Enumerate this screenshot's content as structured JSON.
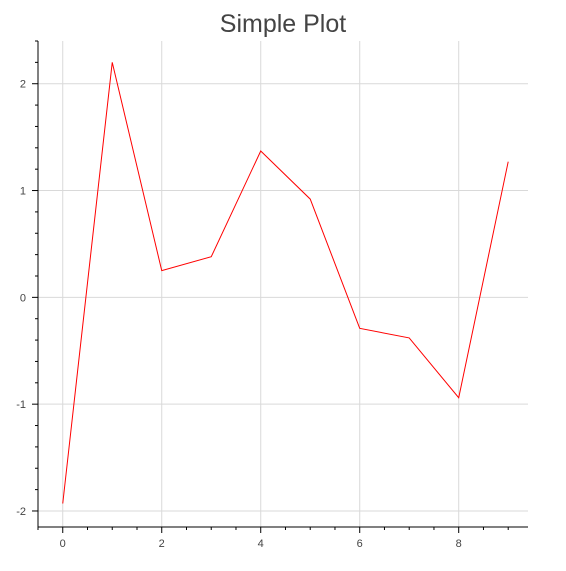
{
  "chart_data": {
    "type": "line",
    "title": "Simple Plot",
    "xlabel": "",
    "ylabel": "",
    "x": [
      0,
      1,
      2,
      3,
      4,
      5,
      6,
      7,
      8,
      9
    ],
    "series": [
      {
        "values": [
          -1.93,
          2.2,
          0.25,
          0.38,
          1.37,
          0.92,
          -0.29,
          -0.38,
          -0.94,
          1.27
        ],
        "color": "#ff0000"
      }
    ],
    "xlim": [
      -0.5,
      9.4
    ],
    "ylim": [
      -2.15,
      2.4
    ],
    "xticks": [
      0,
      2,
      4,
      6,
      8
    ],
    "yticks": [
      -2,
      -1,
      0,
      1,
      2
    ],
    "xtick_labels": [
      "0",
      "2",
      "4",
      "6",
      "8"
    ],
    "ytick_labels": [
      "-2",
      "-1",
      "0",
      "1",
      "2"
    ],
    "grid": true,
    "grid_color": "#d9d9d9",
    "axis_color": "#000000"
  }
}
